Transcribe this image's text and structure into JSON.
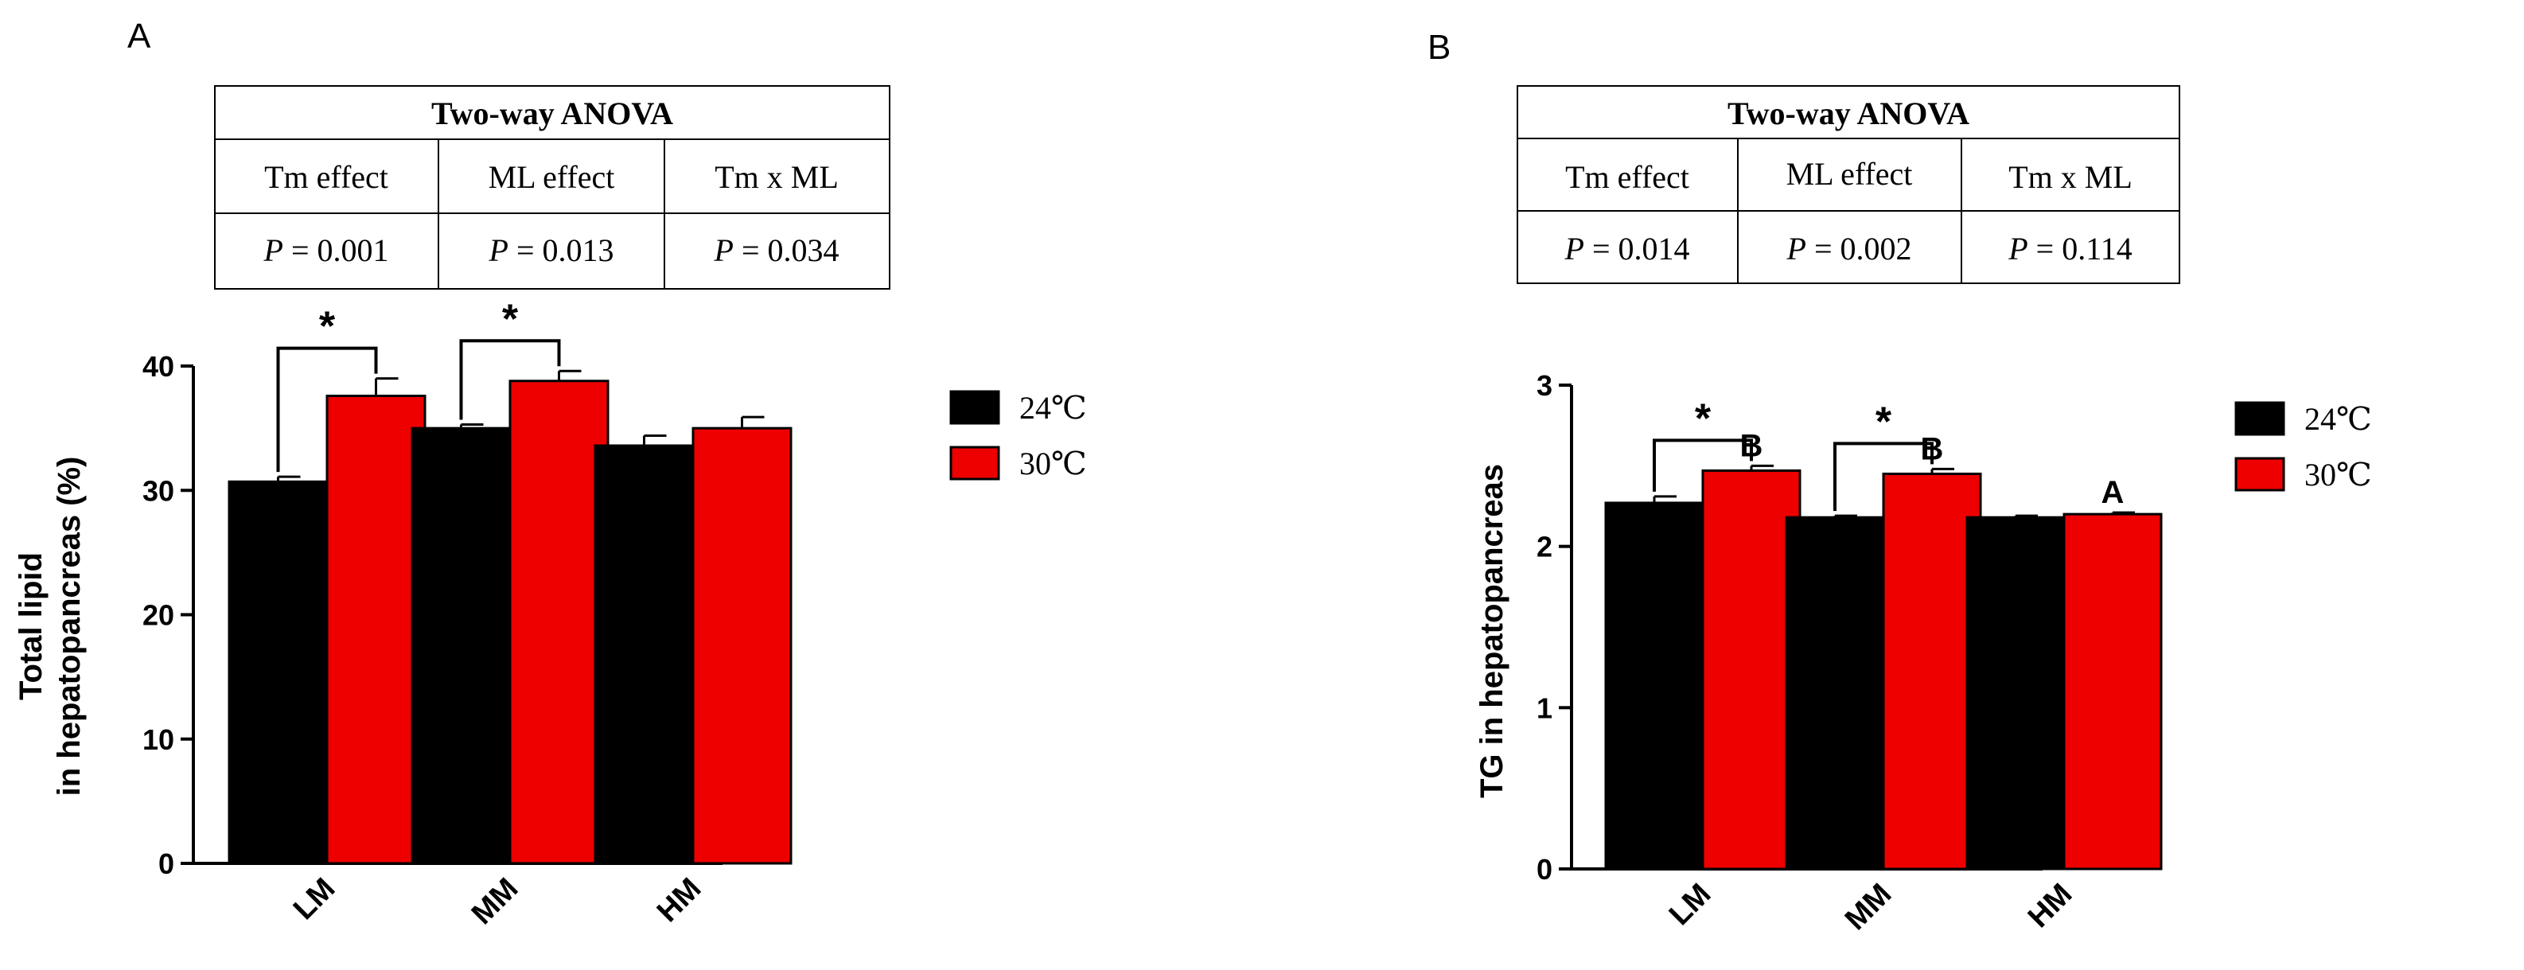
{
  "panels": [
    {
      "letter": "A",
      "anova": {
        "title": "Two-way ANOVA",
        "headers": [
          "Tm effect",
          "ML effect",
          "Tm x ML"
        ],
        "p_label": "P",
        "p_values": [
          "= 0.001",
          "= 0.013",
          "= 0.034"
        ]
      }
    },
    {
      "letter": "B",
      "anova": {
        "title": "Two-way ANOVA",
        "headers": [
          "Tm effect",
          "ML effect",
          "Tm x ML"
        ],
        "p_label": "P",
        "p_values": [
          "= 0.014",
          "= 0.002",
          "= 0.114"
        ]
      }
    }
  ],
  "chart_data": [
    {
      "type": "bar",
      "panel": "A",
      "ylabel_line1": "Total lipid",
      "ylabel_line2": "in hepatopancreas (%)",
      "categories": [
        "LM",
        "MM",
        "HM"
      ],
      "ylim": [
        0,
        40
      ],
      "yticks": [
        0,
        10,
        20,
        30,
        40
      ],
      "series": [
        {
          "name": "24℃",
          "color": "#000000",
          "values": [
            30.7,
            35.0,
            33.6
          ],
          "errors": [
            0.4,
            0.3,
            0.8
          ]
        },
        {
          "name": "30℃",
          "color": "#ee0000",
          "values": [
            37.6,
            38.8,
            35.0
          ],
          "errors": [
            1.4,
            0.8,
            0.9
          ]
        }
      ],
      "significance": [
        {
          "category": "LM",
          "label": "*"
        },
        {
          "category": "MM",
          "label": "*"
        }
      ],
      "letters": [],
      "legend": "right"
    },
    {
      "type": "bar",
      "panel": "B",
      "ylabel": "TG in hepatopancreas",
      "categories": [
        "LM",
        "MM",
        "HM"
      ],
      "ylim": [
        0,
        3
      ],
      "yticks": [
        0,
        1,
        2,
        3
      ],
      "series": [
        {
          "name": "24℃",
          "color": "#000000",
          "values": [
            2.27,
            2.18,
            2.18
          ],
          "errors": [
            0.04,
            0.01,
            0.01
          ]
        },
        {
          "name": "30℃",
          "color": "#ee0000",
          "values": [
            2.47,
            2.45,
            2.2
          ],
          "errors": [
            0.03,
            0.03,
            0.01
          ]
        }
      ],
      "significance": [
        {
          "category": "LM",
          "label": "*"
        },
        {
          "category": "MM",
          "label": "*"
        }
      ],
      "letters": [
        {
          "category": "LM",
          "label": "B"
        },
        {
          "category": "MM",
          "label": "B"
        },
        {
          "category": "HM",
          "label": "A"
        }
      ],
      "legend": "right"
    }
  ]
}
